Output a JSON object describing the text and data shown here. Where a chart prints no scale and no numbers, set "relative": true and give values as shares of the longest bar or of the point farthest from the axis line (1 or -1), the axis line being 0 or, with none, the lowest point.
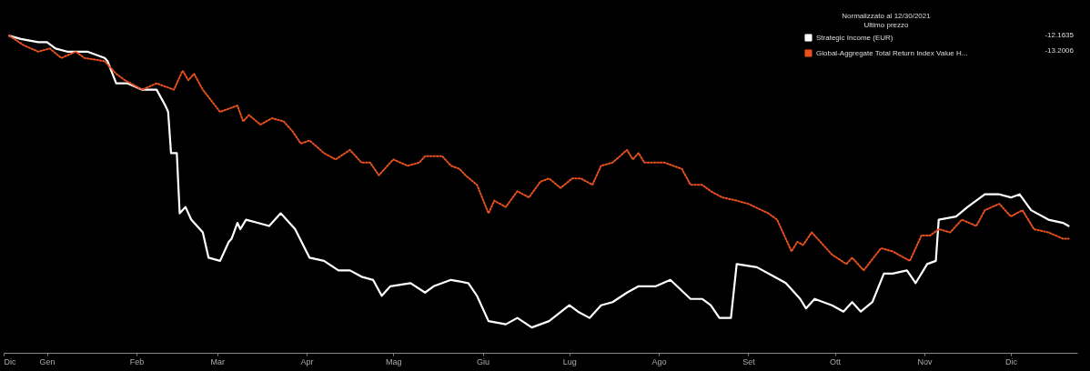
{
  "chart_data": {
    "type": "line",
    "relative": true,
    "legend_title": "Normalizzato al 12/30/2021\nUltimo prezzo",
    "legend": "top right",
    "annotations": [
      "-12.1635",
      "-13.2006"
    ],
    "xlim": [
      "2021-12-17",
      "2022-12-24"
    ],
    "xticks": [
      {
        "value": "2021-12-17",
        "label": "Dic"
      },
      {
        "value": "2022-01-01",
        "label": "Gen"
      },
      {
        "value": "2022-02-01",
        "label": "Feb"
      },
      {
        "value": "2022-03-01",
        "label": "Mar"
      },
      {
        "value": "2022-04-01",
        "label": "Apr"
      },
      {
        "value": "2022-05-01",
        "label": "Mag"
      },
      {
        "value": "2022-06-01",
        "label": "Giu"
      },
      {
        "value": "2022-07-01",
        "label": "Lug"
      },
      {
        "value": "2022-08-01",
        "label": "Ago"
      },
      {
        "value": "2022-09-01",
        "label": "Set"
      },
      {
        "value": "2022-10-01",
        "label": "Ott"
      },
      {
        "value": "2022-11-01",
        "label": "Nov"
      },
      {
        "value": "2022-12-01",
        "label": "Dic"
      }
    ],
    "series": [
      {
        "name": "Strategic Income (EUR)",
        "color": "#ffffff",
        "line_style": "solid",
        "x": [
          "2021-12-19",
          "2021-12-23",
          "2021-12-29",
          "2022-01-01",
          "2022-01-04",
          "2022-01-08",
          "2022-01-15",
          "2022-01-21",
          "2022-01-22",
          "2022-01-25",
          "2022-01-29",
          "2022-02-03",
          "2022-02-08",
          "2022-02-11",
          "2022-02-12",
          "2022-02-13",
          "2022-02-15",
          "2022-02-16",
          "2022-02-18",
          "2022-02-20",
          "2022-02-24",
          "2022-02-26",
          "2022-03-02",
          "2022-03-05",
          "2022-03-06",
          "2022-03-08",
          "2022-03-09",
          "2022-03-11",
          "2022-03-15",
          "2022-03-19",
          "2022-03-23",
          "2022-03-28",
          "2022-04-02",
          "2022-04-07",
          "2022-04-12",
          "2022-04-16",
          "2022-04-20",
          "2022-04-24",
          "2022-04-27",
          "2022-04-30",
          "2022-05-07",
          "2022-05-12",
          "2022-05-15",
          "2022-05-21",
          "2022-05-27",
          "2022-05-30",
          "2022-06-03",
          "2022-06-09",
          "2022-06-13",
          "2022-06-18",
          "2022-06-24",
          "2022-07-01",
          "2022-07-04",
          "2022-07-08",
          "2022-07-12",
          "2022-07-16",
          "2022-07-21",
          "2022-07-25",
          "2022-07-31",
          "2022-08-05",
          "2022-08-12",
          "2022-08-16",
          "2022-08-19",
          "2022-08-22",
          "2022-08-26",
          "2022-08-28",
          "2022-09-04",
          "2022-09-10",
          "2022-09-14",
          "2022-09-19",
          "2022-09-21",
          "2022-09-24",
          "2022-09-30",
          "2022-10-04",
          "2022-10-07",
          "2022-10-10",
          "2022-10-14",
          "2022-10-18",
          "2022-10-21",
          "2022-10-26",
          "2022-10-29",
          "2022-11-02",
          "2022-11-05",
          "2022-11-06",
          "2022-11-12",
          "2022-11-16",
          "2022-11-22",
          "2022-11-27",
          "2022-12-01",
          "2022-12-04",
          "2022-12-08",
          "2022-12-14",
          "2022-12-19",
          "2022-12-21"
        ],
        "values": [
          1,
          0.99,
          0.98,
          0.98,
          0.96,
          0.95,
          0.95,
          0.93,
          0.92,
          0.85,
          0.85,
          0.83,
          0.83,
          0.78,
          0.76,
          0.63,
          0.63,
          0.44,
          0.46,
          0.42,
          0.38,
          0.3,
          0.29,
          0.35,
          0.36,
          0.41,
          0.39,
          0.42,
          0.41,
          0.4,
          0.44,
          0.39,
          0.3,
          0.29,
          0.26,
          0.26,
          0.24,
          0.23,
          0.18,
          0.21,
          0.22,
          0.19,
          0.21,
          0.23,
          0.22,
          0.18,
          0.1,
          0.09,
          0.11,
          0.08,
          0.1,
          0.15,
          0.13,
          0.11,
          0.15,
          0.16,
          0.19,
          0.21,
          0.21,
          0.23,
          0.17,
          0.17,
          0.15,
          0.11,
          0.11,
          0.28,
          0.27,
          0.24,
          0.22,
          0.17,
          0.14,
          0.17,
          0.15,
          0.13,
          0.16,
          0.13,
          0.16,
          0.25,
          0.25,
          0.26,
          0.22,
          0.28,
          0.29,
          0.42,
          0.43,
          0.46,
          0.5,
          0.5,
          0.49,
          0.5,
          0.45,
          0.42,
          0.41,
          0.4
        ]
      },
      {
        "name": "Global-Aggregate Total Return Index Value H...",
        "color": "#e8501e",
        "line_style": "dotted",
        "x": [
          "2021-12-19",
          "2021-12-24",
          "2021-12-29",
          "2022-01-02",
          "2022-01-06",
          "2022-01-11",
          "2022-01-14",
          "2022-01-21",
          "2022-01-25",
          "2022-01-28",
          "2022-02-03",
          "2022-02-08",
          "2022-02-14",
          "2022-02-17",
          "2022-02-19",
          "2022-02-21",
          "2022-02-24",
          "2022-03-02",
          "2022-03-08",
          "2022-03-10",
          "2022-03-12",
          "2022-03-16",
          "2022-03-20",
          "2022-03-24",
          "2022-03-27",
          "2022-03-30",
          "2022-04-02",
          "2022-04-07",
          "2022-04-11",
          "2022-04-16",
          "2022-04-20",
          "2022-04-23",
          "2022-04-26",
          "2022-05-01",
          "2022-05-06",
          "2022-05-10",
          "2022-05-12",
          "2022-05-18",
          "2022-05-21",
          "2022-05-24",
          "2022-05-26",
          "2022-05-30",
          "2022-06-03",
          "2022-06-05",
          "2022-06-09",
          "2022-06-13",
          "2022-06-17",
          "2022-06-21",
          "2022-06-24",
          "2022-06-28",
          "2022-07-02",
          "2022-07-05",
          "2022-07-09",
          "2022-07-12",
          "2022-07-16",
          "2022-07-21",
          "2022-07-23",
          "2022-07-25",
          "2022-07-27",
          "2022-08-03",
          "2022-08-09",
          "2022-08-12",
          "2022-08-16",
          "2022-08-19",
          "2022-08-23",
          "2022-08-28",
          "2022-09-01",
          "2022-09-08",
          "2022-09-11",
          "2022-09-16",
          "2022-09-18",
          "2022-09-20",
          "2022-09-23",
          "2022-09-30",
          "2022-10-05",
          "2022-10-07",
          "2022-10-11",
          "2022-10-17",
          "2022-10-21",
          "2022-10-27",
          "2022-10-31",
          "2022-11-03",
          "2022-11-06",
          "2022-11-10",
          "2022-11-14",
          "2022-11-19",
          "2022-11-22",
          "2022-11-27",
          "2022-12-01",
          "2022-12-05",
          "2022-12-09",
          "2022-12-14",
          "2022-12-19",
          "2022-12-21"
        ],
        "values": [
          1,
          0.97,
          0.95,
          0.96,
          0.93,
          0.95,
          0.93,
          0.92,
          0.88,
          0.86,
          0.83,
          0.85,
          0.83,
          0.89,
          0.86,
          0.88,
          0.83,
          0.76,
          0.78,
          0.73,
          0.75,
          0.72,
          0.74,
          0.73,
          0.7,
          0.66,
          0.67,
          0.63,
          0.61,
          0.64,
          0.6,
          0.6,
          0.56,
          0.61,
          0.59,
          0.6,
          0.62,
          0.62,
          0.59,
          0.58,
          0.56,
          0.53,
          0.44,
          0.48,
          0.46,
          0.51,
          0.49,
          0.54,
          0.55,
          0.52,
          0.55,
          0.55,
          0.53,
          0.59,
          0.6,
          0.64,
          0.61,
          0.63,
          0.6,
          0.6,
          0.58,
          0.53,
          0.53,
          0.51,
          0.49,
          0.48,
          0.47,
          0.44,
          0.42,
          0.32,
          0.35,
          0.34,
          0.38,
          0.31,
          0.28,
          0.3,
          0.26,
          0.33,
          0.32,
          0.29,
          0.37,
          0.37,
          0.39,
          0.38,
          0.42,
          0.4,
          0.45,
          0.47,
          0.43,
          0.45,
          0.39,
          0.38,
          0.36,
          0.36
        ]
      }
    ]
  }
}
